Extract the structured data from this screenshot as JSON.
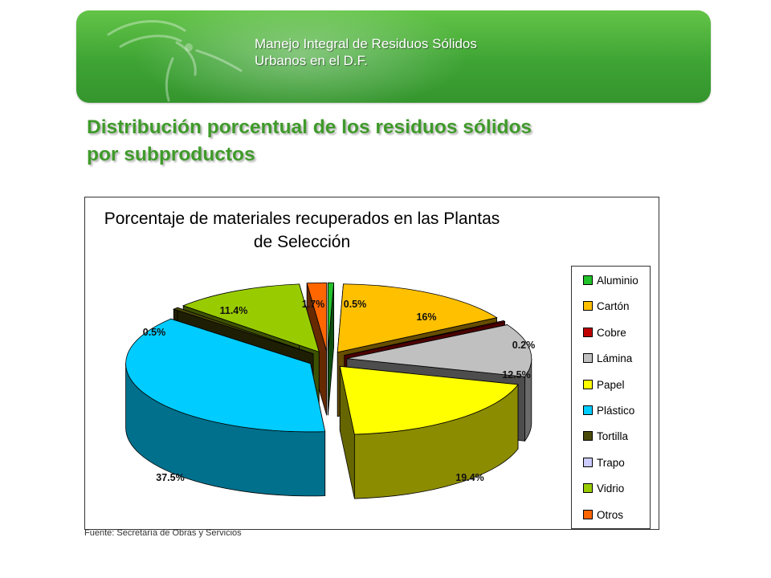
{
  "header": {
    "title_line1": "Manejo Integral de Residuos Sólidos",
    "title_line2": "Urbanos en el D.F."
  },
  "slide_title": {
    "line1": "Distribución porcentual de los residuos sólidos",
    "line2": "por subproductos"
  },
  "chart_data": {
    "type": "pie",
    "title_line1": "Porcentaje de materiales recuperados en las Plantas",
    "title_line2": "de Selección",
    "legend_position": "right",
    "slices": [
      {
        "name": "Aluminio",
        "value": 0.5,
        "label": "0.5%",
        "color": "#22c22a"
      },
      {
        "name": "Cartón",
        "value": 16,
        "label": "16%",
        "color": "#ffc000"
      },
      {
        "name": "Cobre",
        "value": 0.2,
        "label": "0.2%",
        "color": "#c00000"
      },
      {
        "name": "Lámina",
        "value": 12.5,
        "label": "12.5%",
        "color": "#c0c0c0"
      },
      {
        "name": "Papel",
        "value": 19.4,
        "label": "19.4%",
        "color": "#ffff00"
      },
      {
        "name": "Plástico",
        "value": 37.5,
        "label": "37.5%",
        "color": "#00ccff"
      },
      {
        "name": "Tortilla",
        "value": 0.5,
        "label": "0.5%",
        "color": "#4a4a0a"
      },
      {
        "name": "Trapo",
        "value": 0,
        "label": "",
        "color": "#ccccff"
      },
      {
        "name": "Vidrio",
        "value": 11.4,
        "label": "11.4%",
        "color": "#99cc00"
      },
      {
        "name": "Otros",
        "value": 1.7,
        "label": "1.7%",
        "color": "#ff6600"
      }
    ]
  },
  "source": "Fuente: Secretaría de Obras y Servicios"
}
